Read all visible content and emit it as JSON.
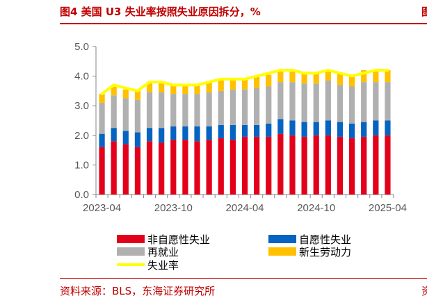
{
  "header": {
    "title": "图4  美国 U3 失业率按照失业原因拆分，%",
    "edge_fragment": "图",
    "source": "资料来源：BLS，东海证券研究所",
    "source_edge_fragment": "资"
  },
  "chart_data": {
    "type": "bar",
    "stacked": true,
    "title": "",
    "xlabel": "",
    "ylabel": "",
    "ylim": [
      0,
      5
    ],
    "yticks": [
      0.0,
      1.0,
      2.0,
      3.0,
      4.0,
      5.0
    ],
    "ytick_labels": [
      "0.0",
      "1.0",
      "2.0",
      "3.0",
      "4.0",
      "5.0"
    ],
    "categories": [
      "2023-04",
      "2023-05",
      "2023-06",
      "2023-07",
      "2023-08",
      "2023-09",
      "2023-10",
      "2023-11",
      "2023-12",
      "2024-01",
      "2024-02",
      "2024-03",
      "2024-04",
      "2024-05",
      "2024-06",
      "2024-07",
      "2024-08",
      "2024-09",
      "2024-10",
      "2024-11",
      "2024-12",
      "2025-01",
      "2025-02",
      "2025-03",
      "2025-04"
    ],
    "xtick_labels": [
      "2023-04",
      "2023-10",
      "2024-04",
      "2024-10",
      "2025-04"
    ],
    "xtick_indices": [
      0,
      6,
      12,
      18,
      24
    ],
    "grid": false,
    "legend_placement": "bottom",
    "series": [
      {
        "name": "非自愿性失业",
        "color": "#e3001b",
        "values": [
          1.6,
          1.8,
          1.7,
          1.6,
          1.8,
          1.75,
          1.85,
          1.85,
          1.8,
          1.85,
          1.9,
          1.85,
          1.95,
          1.95,
          1.95,
          2.05,
          2.0,
          1.95,
          2.0,
          2.0,
          1.95,
          1.9,
          1.95,
          2.0,
          2.0
        ]
      },
      {
        "name": "自愿性失业",
        "color": "#0563c1",
        "values": [
          0.45,
          0.45,
          0.45,
          0.5,
          0.45,
          0.5,
          0.45,
          0.45,
          0.5,
          0.45,
          0.45,
          0.5,
          0.4,
          0.4,
          0.45,
          0.5,
          0.5,
          0.5,
          0.45,
          0.5,
          0.5,
          0.5,
          0.5,
          0.5,
          0.5
        ]
      },
      {
        "name": "再就业",
        "color": "#b0b0b0",
        "values": [
          1.05,
          1.1,
          1.1,
          1.1,
          1.2,
          1.2,
          1.1,
          1.1,
          1.1,
          1.15,
          1.15,
          1.2,
          1.2,
          1.25,
          1.25,
          1.25,
          1.3,
          1.3,
          1.3,
          1.35,
          1.25,
          1.25,
          1.35,
          1.3,
          1.3
        ]
      },
      {
        "name": "新生劳动力",
        "color": "#ffc000",
        "values": [
          0.3,
          0.35,
          0.3,
          0.3,
          0.35,
          0.35,
          0.3,
          0.3,
          0.3,
          0.35,
          0.4,
          0.35,
          0.35,
          0.4,
          0.4,
          0.4,
          0.4,
          0.35,
          0.35,
          0.3,
          0.4,
          0.4,
          0.4,
          0.4,
          0.4
        ]
      }
    ],
    "line": {
      "name": "失业率",
      "color": "#ffff00",
      "values": [
        3.4,
        3.7,
        3.6,
        3.5,
        3.8,
        3.8,
        3.7,
        3.7,
        3.7,
        3.8,
        3.9,
        3.9,
        3.9,
        4.0,
        4.1,
        4.2,
        4.2,
        4.1,
        4.1,
        4.2,
        4.1,
        4.0,
        4.1,
        4.2,
        4.2
      ]
    },
    "legend_order": [
      {
        "series": 0,
        "kind": "bar"
      },
      {
        "series": 1,
        "kind": "bar"
      },
      {
        "series": 2,
        "kind": "bar"
      },
      {
        "series": 3,
        "kind": "bar"
      },
      {
        "series": "line",
        "kind": "line"
      }
    ]
  }
}
